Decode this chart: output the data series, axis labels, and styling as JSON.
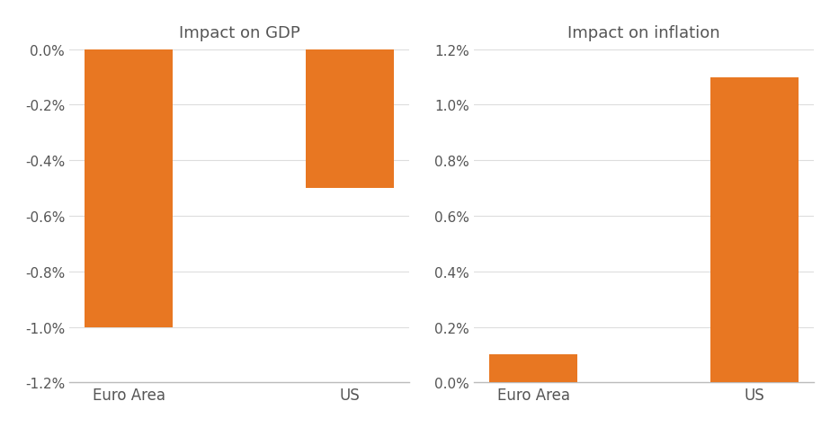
{
  "gdp_categories": [
    "Euro Area",
    "US"
  ],
  "gdp_values": [
    -1.0,
    -0.5
  ],
  "gdp_ylim": [
    -1.2,
    0.0
  ],
  "gdp_yticks": [
    0.0,
    -0.2,
    -0.4,
    -0.6,
    -0.8,
    -1.0,
    -1.2
  ],
  "gdp_title": "Impact on GDP",
  "inf_categories": [
    "Euro Area",
    "US"
  ],
  "inf_values": [
    0.1,
    1.1
  ],
  "inf_ylim": [
    0.0,
    1.2
  ],
  "inf_yticks": [
    0.0,
    0.2,
    0.4,
    0.6,
    0.8,
    1.0,
    1.2
  ],
  "inf_title": "Impact on inflation",
  "bar_color": "#E87722",
  "bar_width": 0.4,
  "title_fontsize": 13,
  "tick_fontsize": 11,
  "label_fontsize": 12,
  "background_color": "#ffffff",
  "tick_color": "#555555",
  "spine_color": "#bbbbbb"
}
